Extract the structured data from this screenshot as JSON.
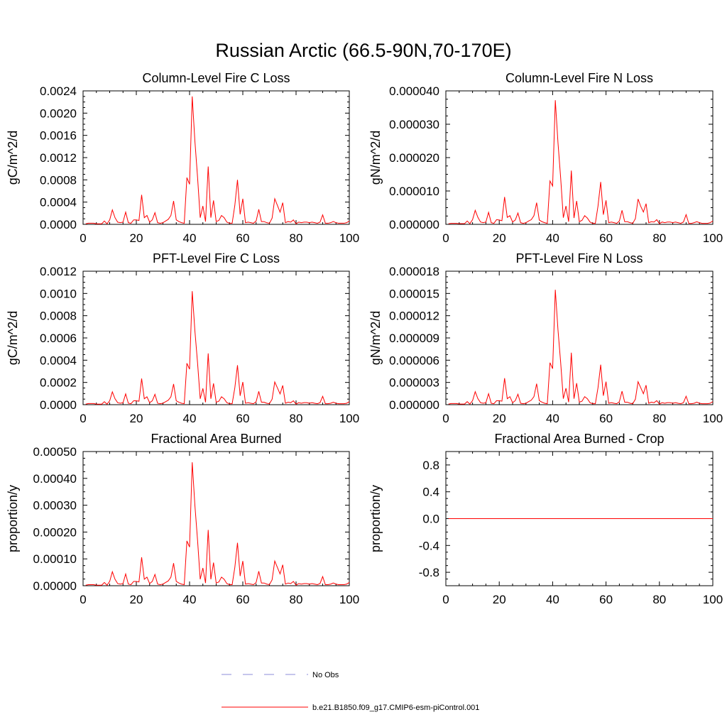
{
  "figure_title": "Russian Arctic (66.5-90N,70-170E)",
  "colors": {
    "series": "#ff0000",
    "obs": "#8c8cd9",
    "axis": "#000000"
  },
  "legend": {
    "obs_label": "No Obs",
    "model_label": "b.e21.B1850.f09_g17.CMIP6-esm-piControl.001"
  },
  "chart_data": [
    {
      "type": "line",
      "title": "Column-Level Fire C Loss",
      "ylabel": "gC/m^2/d",
      "xlim": [
        0,
        100
      ],
      "ylim": [
        0,
        0.0024
      ],
      "xticks": [
        0,
        20,
        40,
        60,
        80,
        100
      ],
      "xtick_labels": [
        "0",
        "20",
        "40",
        "60",
        "80",
        "100"
      ],
      "yticks": [
        0,
        0.0004,
        0.0008,
        0.0012,
        0.0016,
        0.002,
        0.0024
      ],
      "ytick_labels": [
        "0.0000",
        "0.0004",
        "0.0008",
        "0.0012",
        "0.0016",
        "0.0020",
        "0.0024"
      ],
      "series": [
        {
          "name": "b.e21.B1850.f09_g17.CMIP6-esm-piControl.001",
          "x_start": 1,
          "values": [
            1e-05,
            2e-05,
            2e-05,
            2e-05,
            1e-05,
            1e-05,
            1e-05,
            6e-05,
            1e-05,
            8e-05,
            0.00026,
            0.00012,
            4e-05,
            3e-05,
            4e-05,
            0.00022,
            3e-05,
            2e-05,
            8e-05,
            8e-05,
            7e-05,
            0.00053,
            0.00012,
            0.00016,
            4e-05,
            8e-05,
            0.00021,
            3e-05,
            2e-05,
            3e-05,
            6e-05,
            9e-05,
            0.00016,
            0.00042,
            8e-05,
            5e-05,
            3e-05,
            2e-05,
            0.00084,
            0.00072,
            0.0023,
            0.0015,
            0.00085,
            0.00012,
            0.00033,
            5e-05,
            0.00104,
            0.00012,
            0.00043,
            5e-05,
            7e-05,
            0.00016,
            0.00012,
            4e-05,
            2e-05,
            2e-05,
            0.00034,
            0.0008,
            0.00018,
            0.00046,
            3e-05,
            4e-05,
            3e-05,
            2e-05,
            6e-05,
            0.00027,
            5e-05,
            5e-05,
            3e-05,
            2e-05,
            0.00011,
            0.00046,
            0.00034,
            0.00022,
            0.00039,
            3e-05,
            5e-05,
            4e-05,
            8e-05,
            1e-05,
            4e-05,
            3e-05,
            4e-05,
            4e-05,
            3e-05,
            4e-05,
            3e-05,
            2e-05,
            4e-05,
            0.00017,
            2e-05,
            2e-05,
            3e-05,
            5e-05,
            3e-05,
            2e-05,
            2e-05,
            2e-05,
            3e-05,
            6e-05
          ]
        }
      ]
    },
    {
      "type": "line",
      "title": "Column-Level Fire N Loss",
      "ylabel": "gN/m^2/d",
      "xlim": [
        0,
        100
      ],
      "ylim": [
        0,
        4e-05
      ],
      "xticks": [
        0,
        20,
        40,
        60,
        80,
        100
      ],
      "xtick_labels": [
        "0",
        "20",
        "40",
        "60",
        "80",
        "100"
      ],
      "yticks": [
        0,
        1e-05,
        2e-05,
        3e-05,
        4e-05
      ],
      "ytick_labels": [
        "0.000000",
        "0.000010",
        "0.000020",
        "0.000030",
        "0.000040"
      ],
      "series": [
        {
          "name": "b.e21.B1850.f09_g17.CMIP6-esm-piControl.001",
          "x_start": 1,
          "values": [
            2e-07,
            3e-07,
            3e-07,
            3e-07,
            2e-07,
            2e-07,
            2e-07,
            1e-06,
            2e-07,
            1.4e-06,
            4.2e-06,
            2.1e-06,
            7e-07,
            5e-07,
            7e-07,
            3.6e-06,
            5e-07,
            3e-07,
            1.4e-06,
            1.3e-06,
            1.1e-06,
            8.2e-06,
            2.1e-06,
            2.6e-06,
            7e-07,
            1.3e-06,
            3.4e-06,
            5e-07,
            3e-07,
            5e-07,
            1e-06,
            1.4e-06,
            2.6e-06,
            6.5e-06,
            1.3e-06,
            8e-07,
            5e-07,
            3e-07,
            1.3e-05,
            1.15e-05,
            3.72e-05,
            2.45e-05,
            1.4e-05,
            2e-06,
            5.5e-06,
            8e-07,
            1.61e-05,
            1.9e-06,
            7e-06,
            8e-07,
            1.2e-06,
            2.6e-06,
            1.9e-06,
            7e-07,
            3e-07,
            3e-07,
            5.5e-06,
            1.27e-05,
            2.9e-06,
            7.2e-06,
            5e-07,
            7e-07,
            5e-07,
            3e-07,
            1e-06,
            4.2e-06,
            8e-07,
            8e-07,
            5e-07,
            3e-07,
            1.7e-06,
            7.6e-06,
            5.4e-06,
            3.7e-06,
            6.2e-06,
            5e-07,
            8e-07,
            7e-07,
            1.4e-06,
            2e-07,
            7e-07,
            5e-07,
            7e-07,
            7e-07,
            5e-07,
            7e-07,
            5e-07,
            3e-07,
            7e-07,
            2.9e-06,
            3e-07,
            3e-07,
            5e-07,
            8e-07,
            5e-07,
            3e-07,
            3e-07,
            3e-07,
            5e-07,
            1e-06
          ]
        }
      ]
    },
    {
      "type": "line",
      "title": "PFT-Level Fire C Loss",
      "ylabel": "gC/m^2/d",
      "xlim": [
        0,
        100
      ],
      "ylim": [
        0,
        0.0012
      ],
      "xticks": [
        0,
        20,
        40,
        60,
        80,
        100
      ],
      "xtick_labels": [
        "0",
        "20",
        "40",
        "60",
        "80",
        "100"
      ],
      "yticks": [
        0,
        0.0002,
        0.0004,
        0.0006,
        0.0008,
        0.001,
        0.0012
      ],
      "ytick_labels": [
        "0.0000",
        "0.0002",
        "0.0004",
        "0.0006",
        "0.0008",
        "0.0010",
        "0.0012"
      ],
      "series": [
        {
          "name": "b.e21.B1850.f09_g17.CMIP6-esm-piControl.001",
          "x_start": 1,
          "values": [
            5e-06,
            1e-05,
            1e-05,
            1e-05,
            5e-06,
            5e-06,
            5e-06,
            2.7e-05,
            5e-06,
            3.5e-05,
            0.000115,
            5.3e-05,
            1.8e-05,
            1.3e-05,
            1.8e-05,
            9.7e-05,
            1.3e-05,
            9e-06,
            3.5e-05,
            3.5e-05,
            3.1e-05,
            0.000235,
            5.3e-05,
            7.1e-05,
            1.8e-05,
            3.5e-05,
            9.3e-05,
            1.3e-05,
            9e-06,
            1.3e-05,
            2.7e-05,
            4e-05,
            7.1e-05,
            0.000186,
            3.5e-05,
            2.2e-05,
            1.3e-05,
            9e-06,
            0.000372,
            0.000319,
            0.00102,
            0.000665,
            0.000377,
            5.3e-05,
            0.000146,
            2.2e-05,
            0.000461,
            5.3e-05,
            0.000191,
            2.2e-05,
            3.1e-05,
            7.1e-05,
            5.3e-05,
            1.8e-05,
            9e-06,
            9e-06,
            0.000151,
            0.000355,
            8e-05,
            0.000204,
            1.3e-05,
            1.8e-05,
            1.3e-05,
            9e-06,
            2.7e-05,
            0.00012,
            2.2e-05,
            2.2e-05,
            1.3e-05,
            9e-06,
            4.9e-05,
            0.000204,
            0.000151,
            9.7e-05,
            0.000173,
            1.3e-05,
            2.2e-05,
            1.8e-05,
            3.5e-05,
            5e-06,
            1.8e-05,
            1.3e-05,
            1.8e-05,
            1.8e-05,
            1.3e-05,
            1.8e-05,
            1.3e-05,
            9e-06,
            1.8e-05,
            7.5e-05,
            9e-06,
            9e-06,
            1.3e-05,
            2.2e-05,
            1.3e-05,
            9e-06,
            9e-06,
            9e-06,
            1.3e-05,
            2.7e-05
          ]
        }
      ]
    },
    {
      "type": "line",
      "title": "PFT-Level Fire N Loss",
      "ylabel": "gN/m^2/d",
      "xlim": [
        0,
        100
      ],
      "ylim": [
        0,
        1.8e-05
      ],
      "xticks": [
        0,
        20,
        40,
        60,
        80,
        100
      ],
      "xtick_labels": [
        "0",
        "20",
        "40",
        "60",
        "80",
        "100"
      ],
      "yticks": [
        0,
        3e-06,
        6e-06,
        9e-06,
        1.2e-05,
        1.5e-05,
        1.8e-05
      ],
      "ytick_labels": [
        "0.000000",
        "0.000003",
        "0.000006",
        "0.000009",
        "0.000012",
        "0.000015",
        "0.000018"
      ],
      "series": [
        {
          "name": "b.e21.B1850.f09_g17.CMIP6-esm-piControl.001",
          "x_start": 1,
          "values": [
            8e-08,
            1.6e-07,
            1.6e-07,
            1.6e-07,
            8e-08,
            8e-08,
            8e-08,
            4.1e-07,
            8e-08,
            5.4e-07,
            1.75e-06,
            8.1e-07,
            2.7e-07,
            1.9e-07,
            2.7e-07,
            1.48e-06,
            1.9e-07,
            1.3e-07,
            5.4e-07,
            5.4e-07,
            4.7e-07,
            3.57e-06,
            8.1e-07,
            1.08e-06,
            2.7e-07,
            5.4e-07,
            1.41e-06,
            1.9e-07,
            1.3e-07,
            1.9e-07,
            4.1e-07,
            6.1e-07,
            1.08e-06,
            2.83e-06,
            5.4e-07,
            3.4e-07,
            1.9e-07,
            1.3e-07,
            5.66e-06,
            4.85e-06,
            1.55e-05,
            1.01e-05,
            5.73e-06,
            8.1e-07,
            2.22e-06,
            3.4e-07,
            7.01e-06,
            8.1e-07,
            2.9e-06,
            3.4e-07,
            4.7e-07,
            1.08e-06,
            8.1e-07,
            2.7e-07,
            1.3e-07,
            1.3e-07,
            2.29e-06,
            5.39e-06,
            1.21e-06,
            3.1e-06,
            1.9e-07,
            2.7e-07,
            1.9e-07,
            1.3e-07,
            4.1e-07,
            1.82e-06,
            3.4e-07,
            3.4e-07,
            1.9e-07,
            1.3e-07,
            7.4e-07,
            3.1e-06,
            2.29e-06,
            1.48e-06,
            2.63e-06,
            1.9e-07,
            3.4e-07,
            2.7e-07,
            5.4e-07,
            8e-08,
            2.7e-07,
            1.9e-07,
            2.7e-07,
            2.7e-07,
            1.9e-07,
            2.7e-07,
            1.9e-07,
            1.3e-07,
            2.7e-07,
            1.14e-06,
            1.3e-07,
            1.3e-07,
            1.9e-07,
            3.4e-07,
            1.9e-07,
            1.3e-07,
            1.3e-07,
            1.3e-07,
            1.9e-07,
            4.1e-07
          ]
        }
      ]
    },
    {
      "type": "line",
      "title": "Fractional Area Burned",
      "ylabel": "proportion/y",
      "xlim": [
        0,
        100
      ],
      "ylim": [
        0,
        0.0005
      ],
      "xticks": [
        0,
        20,
        40,
        60,
        80,
        100
      ],
      "xtick_labels": [
        "0",
        "20",
        "40",
        "60",
        "80",
        "100"
      ],
      "yticks": [
        0,
        0.0001,
        0.0002,
        0.0003,
        0.0004,
        0.0005
      ],
      "ytick_labels": [
        "0.00000",
        "0.00010",
        "0.00020",
        "0.00030",
        "0.00040",
        "0.00050"
      ],
      "series": [
        {
          "name": "b.e21.B1850.f09_g17.CMIP6-esm-piControl.001",
          "x_start": 1,
          "values": [
            2e-06,
            4e-06,
            4e-06,
            4e-06,
            2e-06,
            2e-06,
            2e-06,
            1.2e-05,
            2e-06,
            1.6e-05,
            5.2e-05,
            2.4e-05,
            8e-06,
            6e-06,
            8e-06,
            4.4e-05,
            6e-06,
            4e-06,
            1.6e-05,
            1.6e-05,
            1.4e-05,
            0.000106,
            2.4e-05,
            3.2e-05,
            8e-06,
            1.6e-05,
            4.2e-05,
            6e-06,
            4e-06,
            6e-06,
            1.2e-05,
            1.8e-05,
            3.2e-05,
            8.4e-05,
            1.6e-05,
            1e-05,
            6e-06,
            4e-06,
            0.000167,
            0.000144,
            0.00046,
            0.0003,
            0.00017,
            2.4e-05,
            6.6e-05,
            1e-05,
            0.000208,
            2.4e-05,
            8.6e-05,
            1e-05,
            1.4e-05,
            3.2e-05,
            2.4e-05,
            8e-06,
            4e-06,
            4e-06,
            6.8e-05,
            0.00016,
            3.6e-05,
            9.2e-05,
            6e-06,
            8e-06,
            6e-06,
            4e-06,
            1.2e-05,
            5.4e-05,
            1e-05,
            1e-05,
            6e-06,
            4e-06,
            2.2e-05,
            9.2e-05,
            6.8e-05,
            4.4e-05,
            7.8e-05,
            6e-06,
            1e-05,
            8e-06,
            1.6e-05,
            2e-06,
            8e-06,
            6e-06,
            8e-06,
            8e-06,
            6e-06,
            8e-06,
            6e-06,
            4e-06,
            8e-06,
            3.4e-05,
            4e-06,
            4e-06,
            6e-06,
            1e-05,
            6e-06,
            4e-06,
            4e-06,
            4e-06,
            6e-06,
            1.2e-05
          ]
        }
      ]
    },
    {
      "type": "line",
      "title": "Fractional Area Burned - Crop",
      "ylabel": "proportion/y",
      "xlim": [
        0,
        100
      ],
      "ylim": [
        -1,
        1
      ],
      "xticks": [
        0,
        20,
        40,
        60,
        80,
        100
      ],
      "xtick_labels": [
        "0",
        "20",
        "40",
        "60",
        "80",
        "100"
      ],
      "yticks": [
        -0.8,
        -0.4,
        0,
        0.4,
        0.8
      ],
      "ytick_labels": [
        "-0.8",
        "-0.4",
        "0.0",
        "0.4",
        "0.8"
      ],
      "series": [
        {
          "name": "b.e21.B1850.f09_g17.CMIP6-esm-piControl.001",
          "x_start": 1,
          "values": [
            0,
            0,
            0,
            0,
            0,
            0,
            0,
            0,
            0,
            0,
            0,
            0,
            0,
            0,
            0,
            0,
            0,
            0,
            0,
            0,
            0,
            0,
            0,
            0,
            0,
            0,
            0,
            0,
            0,
            0,
            0,
            0,
            0,
            0,
            0,
            0,
            0,
            0,
            0,
            0,
            0,
            0,
            0,
            0,
            0,
            0,
            0,
            0,
            0,
            0,
            0,
            0,
            0,
            0,
            0,
            0,
            0,
            0,
            0,
            0,
            0,
            0,
            0,
            0,
            0,
            0,
            0,
            0,
            0,
            0,
            0,
            0,
            0,
            0,
            0,
            0,
            0,
            0,
            0,
            0,
            0,
            0,
            0,
            0,
            0,
            0,
            0,
            0,
            0,
            0,
            0,
            0,
            0,
            0,
            0,
            0,
            0,
            0,
            0,
            0
          ]
        }
      ]
    }
  ]
}
